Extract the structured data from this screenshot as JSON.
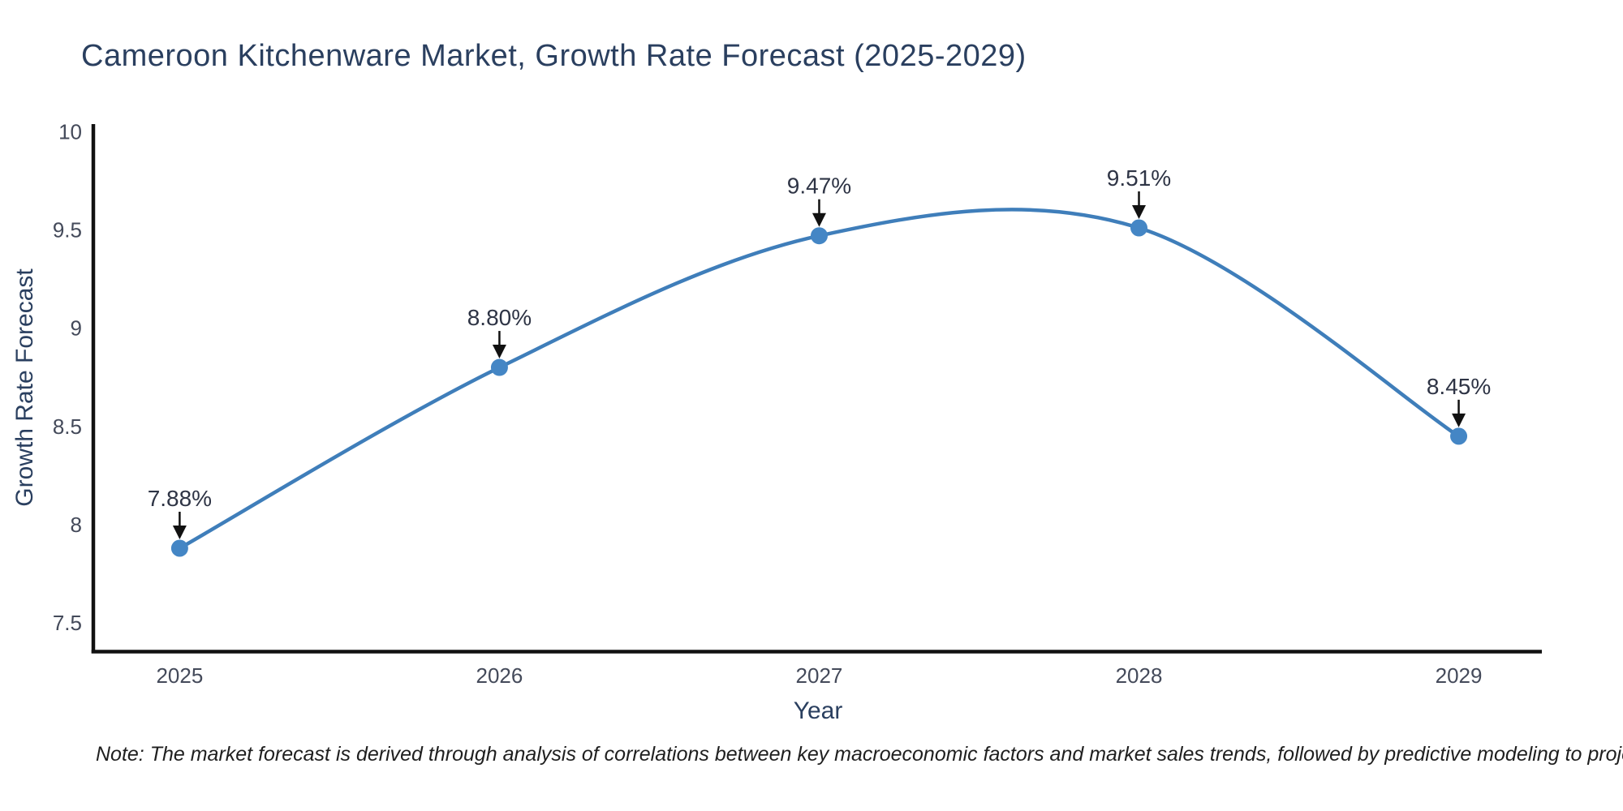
{
  "page": {
    "background": "#ffffff"
  },
  "header": {
    "title": "Cameroon Kitchenware Market, Growth Rate Forecast (2025-2029)"
  },
  "footnote": {
    "text": "Note: The market forecast is derived through analysis of correlations between key macroeconomic factors and market sales trends, followed by predictive modeling to project future sales"
  },
  "chart_data": {
    "type": "line",
    "title": "Cameroon Kitchenware Market, Growth Rate Forecast (2025-2029)",
    "xlabel": "Year",
    "ylabel": "Growth Rate Forecast",
    "x": [
      2025,
      2026,
      2027,
      2028,
      2029
    ],
    "x_tick_labels": [
      "2025",
      "2026",
      "2027",
      "2028",
      "2029"
    ],
    "series": [
      {
        "name": "Growth Rate Forecast",
        "values": [
          7.88,
          8.8,
          9.47,
          9.51,
          8.45
        ]
      }
    ],
    "point_labels": [
      "7.88%",
      "8.80%",
      "9.47%",
      "9.51%",
      "8.45%"
    ],
    "y_ticks": [
      10,
      9.5,
      9,
      8.5,
      8,
      7.5
    ],
    "y_tick_labels": [
      "10",
      "9.5",
      "9",
      "8.5",
      "8",
      "7.5"
    ],
    "xlim": [
      2024.73,
      2029.26
    ],
    "ylim": [
      7.36,
      10.03
    ],
    "grid": false,
    "legend": "none",
    "line_shape": "spline",
    "annotation_arrows": true,
    "colors": {
      "line": "#3f7eba",
      "marker": "#4486c5",
      "axis": "#111111",
      "arrow": "#111111",
      "title_text": "#2a3f5f",
      "tick_text": "#444a5a",
      "annotation_text": "#2e3445",
      "note_text": "#1f1f1f"
    }
  }
}
